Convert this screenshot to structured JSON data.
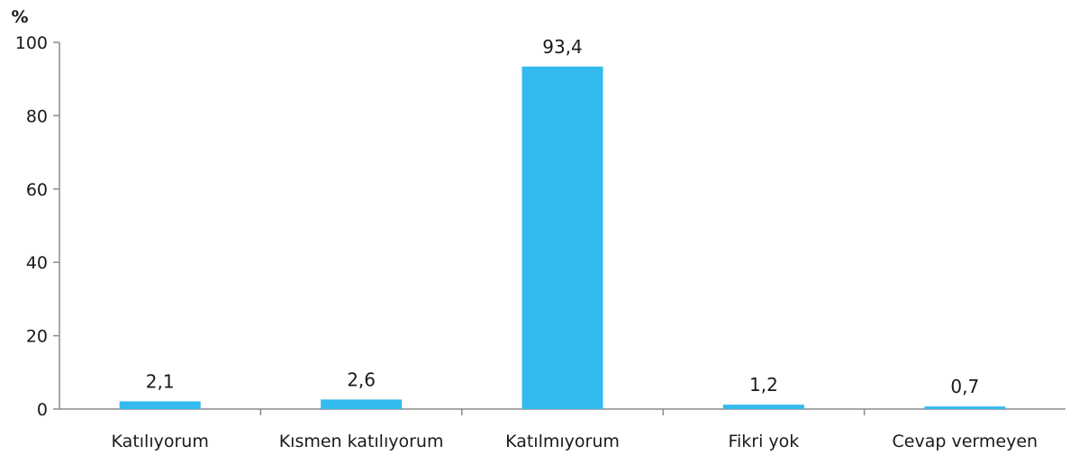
{
  "chart_data": {
    "type": "bar",
    "unit": "%",
    "categories": [
      "Katılıyorum",
      "Kısmen katılıyorum",
      "Katılmıyorum",
      "Fikri yok",
      "Cevap vermeyen"
    ],
    "values": [
      2.1,
      2.6,
      93.4,
      1.2,
      0.7
    ],
    "data_labels": [
      "2,1",
      "2,6",
      "93,4",
      "1,2",
      "0,7"
    ],
    "yticks": [
      0,
      20,
      40,
      60,
      80,
      100
    ],
    "ylim": [
      0,
      100
    ],
    "grid": false,
    "legend": "none",
    "bar_color": "#33bbef",
    "axis_color": "#8c8c8c"
  }
}
